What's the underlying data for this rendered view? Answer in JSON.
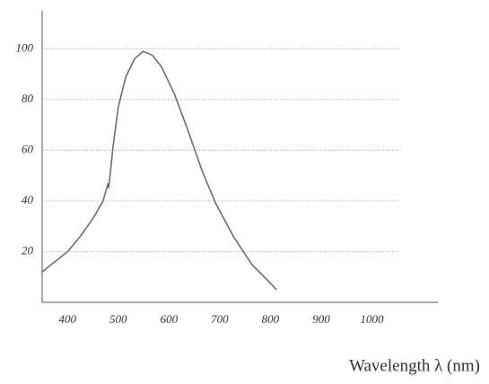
{
  "chart_data": {
    "type": "line",
    "x_label": "Wavelength λ (nm)",
    "x": [
      350,
      375,
      400,
      425,
      450,
      470,
      480,
      481,
      490,
      500,
      515,
      532,
      549,
      567,
      585,
      611,
      637,
      665,
      692,
      727,
      763,
      798,
      812
    ],
    "series": [
      {
        "color": "#6e6e6e",
        "values": [
          12,
          16,
          20,
          26,
          33,
          40,
          47,
          45,
          62,
          77,
          89,
          96,
          99,
          97.5,
          93,
          82,
          68,
          52,
          39,
          26,
          15,
          8,
          5
        ]
      }
    ],
    "xlim": [
      350,
      1130
    ],
    "xticks": [
      400,
      500,
      600,
      700,
      800,
      900,
      1000
    ],
    "ylim": [
      0,
      115
    ],
    "yticks": [
      20,
      40,
      60,
      80,
      100
    ],
    "grid": true
  }
}
